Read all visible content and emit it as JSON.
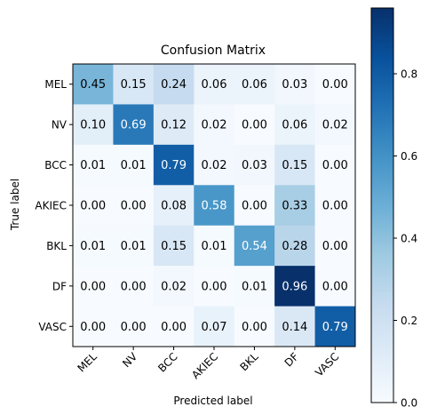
{
  "chart_data": {
    "type": "heatmap",
    "title": "Confusion Matrix",
    "xlabel": "Predicted label",
    "ylabel": "True label",
    "x_categories": [
      "MEL",
      "NV",
      "BCC",
      "AKIEC",
      "BKL",
      "DF",
      "VASC"
    ],
    "y_categories": [
      "MEL",
      "NV",
      "BCC",
      "AKIEC",
      "BKL",
      "DF",
      "VASC"
    ],
    "values": [
      [
        0.45,
        0.15,
        0.24,
        0.06,
        0.06,
        0.03,
        0.0
      ],
      [
        0.1,
        0.69,
        0.12,
        0.02,
        0.0,
        0.06,
        0.02
      ],
      [
        0.01,
        0.01,
        0.79,
        0.02,
        0.03,
        0.15,
        0.0
      ],
      [
        0.0,
        0.0,
        0.08,
        0.58,
        0.0,
        0.33,
        0.0
      ],
      [
        0.01,
        0.01,
        0.15,
        0.01,
        0.54,
        0.28,
        0.0
      ],
      [
        0.0,
        0.0,
        0.02,
        0.0,
        0.01,
        0.96,
        0.0
      ],
      [
        0.0,
        0.0,
        0.0,
        0.07,
        0.0,
        0.14,
        0.79
      ]
    ],
    "colormap": "Blues",
    "colorbar_range": [
      0,
      0.96
    ],
    "colorbar_ticks": [
      "0.0",
      "0.2",
      "0.4",
      "0.6",
      "0.8"
    ],
    "colorbar_tick_values": [
      0,
      0.2,
      0.4,
      0.6,
      0.8
    ],
    "x_tick_rotation_deg": 45,
    "text_color_light": "#ffffff",
    "text_color_dark": "#000000"
  }
}
